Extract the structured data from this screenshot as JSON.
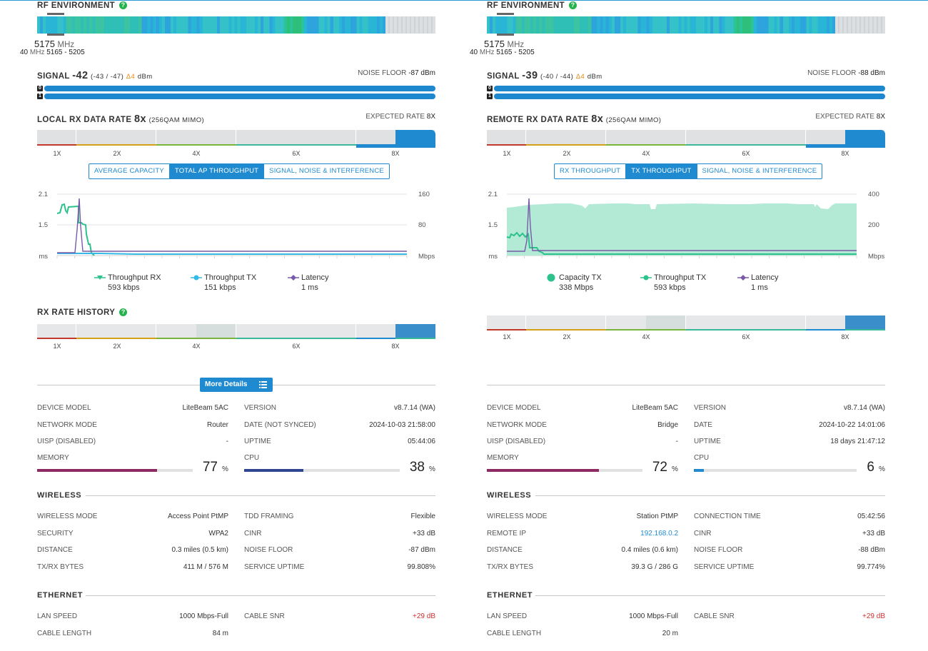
{
  "colors": {
    "accent": "#1f8ad0",
    "help": "#23b34a",
    "memory": "#8e2a63",
    "cpu": "#2f4793",
    "cpu_right": "#1f8ad0",
    "delta": "#e88b1a",
    "negative": "#d32f2f",
    "throughput_rx": "#2dc28b",
    "throughput_tx": "#35b9e6",
    "latency": "#7a5aa8",
    "capacity": "#b3ead5",
    "rate_1x": "#c0392b",
    "rate_2x": "#d4a017",
    "rate_4x": "#78b53a",
    "rate_6x": "#3bb89b",
    "rate_8x": "#1f8ad0"
  },
  "left": {
    "rf": {
      "title": "RF ENVIRONMENT",
      "help": "?",
      "used_fraction": 0.875,
      "freq": "5175",
      "freq_unit": "MHz",
      "width": "40",
      "width_unit": "MHz",
      "range": "5165 - 5205"
    },
    "signal": {
      "label": "SIGNAL",
      "value": "-42",
      "chains": "(-43 / -47)",
      "delta": "Δ4",
      "unit": "dBm",
      "noise_label": "NOISE FLOOR",
      "noise_value": "-87 dBm",
      "chain0": "0",
      "chain1": "1"
    },
    "rate": {
      "label": "LOCAL RX DATA RATE",
      "value": "8x",
      "mod": "(256QAM MIMO)",
      "expected_label": "EXPECTED RATE",
      "expected_value": "8X",
      "labels": [
        "1X",
        "2X",
        "4X",
        "6X",
        "8X"
      ]
    },
    "tabs": [
      {
        "label": "AVERAGE CAPACITY",
        "active": false
      },
      {
        "label": "TOTAL AP THROUGHPUT",
        "active": true
      },
      {
        "label": "SIGNAL, NOISE & INTERFERENCE",
        "active": false
      }
    ],
    "chart": {
      "y_left_ticks": [
        "2.1",
        "1.5",
        "ms"
      ],
      "y_right_ticks": [
        "160",
        "80",
        "Mbps"
      ]
    },
    "legend": [
      {
        "name": "Throughput RX",
        "value": "593 kbps",
        "symbol": "triangle",
        "color": "throughput_rx"
      },
      {
        "name": "Throughput TX",
        "value": "151 kbps",
        "symbol": "dot",
        "color": "throughput_tx"
      },
      {
        "name": "Latency",
        "value": "1 ms",
        "symbol": "diamond",
        "color": "latency"
      }
    ],
    "history": {
      "title": "RX RATE HISTORY",
      "help": "?",
      "labels": [
        "1X",
        "2X",
        "4X",
        "6X",
        "8X"
      ]
    },
    "more_details": "More Details",
    "device": [
      {
        "k": "DEVICE MODEL",
        "v": "LiteBeam 5AC"
      },
      {
        "k": "NETWORK MODE",
        "v": "Router"
      },
      {
        "k": "UISP (DISABLED)",
        "v": "-"
      }
    ],
    "device_right": [
      {
        "k": "VERSION",
        "v": "v8.7.14 (WA)"
      },
      {
        "k": "DATE (NOT SYNCED)",
        "v": "2024-10-03 21:58:00"
      },
      {
        "k": "UPTIME",
        "v": "05:44:06"
      }
    ],
    "memory": {
      "label": "MEMORY",
      "value": "77",
      "unit": "%",
      "fraction": 0.77
    },
    "cpu": {
      "label": "CPU",
      "value": "38",
      "unit": "%",
      "fraction": 0.38
    },
    "wireless_title": "WIRELESS",
    "wireless_left": [
      {
        "k": "WIRELESS MODE",
        "v": "Access Point PtMP"
      },
      {
        "k": "SECURITY",
        "v": "WPA2"
      },
      {
        "k": "DISTANCE",
        "v": "0.3 miles (0.5 km)"
      },
      {
        "k": "TX/RX BYTES",
        "v": "411 M / 576 M"
      }
    ],
    "wireless_right": [
      {
        "k": "TDD FRAMING",
        "v": "Flexible"
      },
      {
        "k": "CINR",
        "v": "+33 dB"
      },
      {
        "k": "NOISE FLOOR",
        "v": "-87 dBm"
      },
      {
        "k": "SERVICE UPTIME",
        "v": "99.808%"
      }
    ],
    "ethernet_title": "ETHERNET",
    "ethernet_left": [
      {
        "k": "LAN SPEED",
        "v": "1000 Mbps-Full"
      },
      {
        "k": "CABLE LENGTH",
        "v": "84 m"
      }
    ],
    "ethernet_right": [
      {
        "k": "CABLE SNR",
        "v": "+29 dB"
      }
    ]
  },
  "right": {
    "rf": {
      "title": "RF ENVIRONMENT",
      "help": "?",
      "used_fraction": 0.875,
      "freq": "5175",
      "freq_unit": "MHz",
      "width": "40",
      "width_unit": "MHz",
      "range": "5165 - 5205"
    },
    "signal": {
      "label": "SIGNAL",
      "value": "-39",
      "chains": "(-40 / -44)",
      "delta": "Δ4",
      "unit": "dBm",
      "noise_label": "NOISE FLOOR",
      "noise_value": "-88 dBm",
      "chain0": "0",
      "chain1": "1"
    },
    "rate": {
      "label": "REMOTE RX DATA RATE",
      "value": "8x",
      "mod": "(256QAM MIMO)",
      "expected_label": "EXPECTED RATE",
      "expected_value": "8X",
      "labels": [
        "1X",
        "2X",
        "4X",
        "6X",
        "8X"
      ]
    },
    "tabs": [
      {
        "label": "RX THROUGHPUT",
        "active": false
      },
      {
        "label": "TX THROUGHPUT",
        "active": true
      },
      {
        "label": "SIGNAL, NOISE & INTERFERENCE",
        "active": false
      }
    ],
    "chart": {
      "y_left_ticks": [
        "2.1",
        "1.5",
        "ms"
      ],
      "y_right_ticks": [
        "400",
        "200",
        "Mbps"
      ]
    },
    "legend": [
      {
        "name": "Capacity TX",
        "value": "338 Mbps",
        "symbol": "bigdot",
        "color": "throughput_rx"
      },
      {
        "name": "Throughput TX",
        "value": "593 kbps",
        "symbol": "dot",
        "color": "throughput_rx"
      },
      {
        "name": "Latency",
        "value": "1 ms",
        "symbol": "diamond",
        "color": "latency"
      }
    ],
    "history": {
      "labels": [
        "1X",
        "2X",
        "4X",
        "6X",
        "8X"
      ]
    },
    "device": [
      {
        "k": "DEVICE MODEL",
        "v": "LiteBeam 5AC"
      },
      {
        "k": "NETWORK MODE",
        "v": "Bridge"
      },
      {
        "k": "UISP (DISABLED)",
        "v": "-"
      }
    ],
    "device_right": [
      {
        "k": "VERSION",
        "v": "v8.7.14 (WA)"
      },
      {
        "k": "DATE",
        "v": "2024-10-22 14:01:06"
      },
      {
        "k": "UPTIME",
        "v": "18 days 21:47:12"
      }
    ],
    "memory": {
      "label": "MEMORY",
      "value": "72",
      "unit": "%",
      "fraction": 0.72
    },
    "cpu": {
      "label": "CPU",
      "value": "6",
      "unit": "%",
      "fraction": 0.06
    },
    "wireless_title": "WIRELESS",
    "wireless_left": [
      {
        "k": "WIRELESS MODE",
        "v": "Station PtMP"
      },
      {
        "k": "REMOTE IP",
        "v": "192.168.0.2"
      },
      {
        "k": "DISTANCE",
        "v": "0.4 miles (0.6 km)"
      },
      {
        "k": "TX/RX BYTES",
        "v": "39.3 G / 286 G"
      }
    ],
    "wireless_right": [
      {
        "k": "CONNECTION TIME",
        "v": "05:42:56"
      },
      {
        "k": "CINR",
        "v": "+33 dB"
      },
      {
        "k": "NOISE FLOOR",
        "v": "-88 dBm"
      },
      {
        "k": "SERVICE UPTIME",
        "v": "99.774%"
      }
    ],
    "ethernet_title": "ETHERNET",
    "ethernet_left": [
      {
        "k": "LAN SPEED",
        "v": "1000 Mbps-Full"
      },
      {
        "k": "CABLE LENGTH",
        "v": "20 m"
      }
    ],
    "ethernet_right": [
      {
        "k": "CABLE SNR",
        "v": "+29 dB"
      }
    ]
  }
}
